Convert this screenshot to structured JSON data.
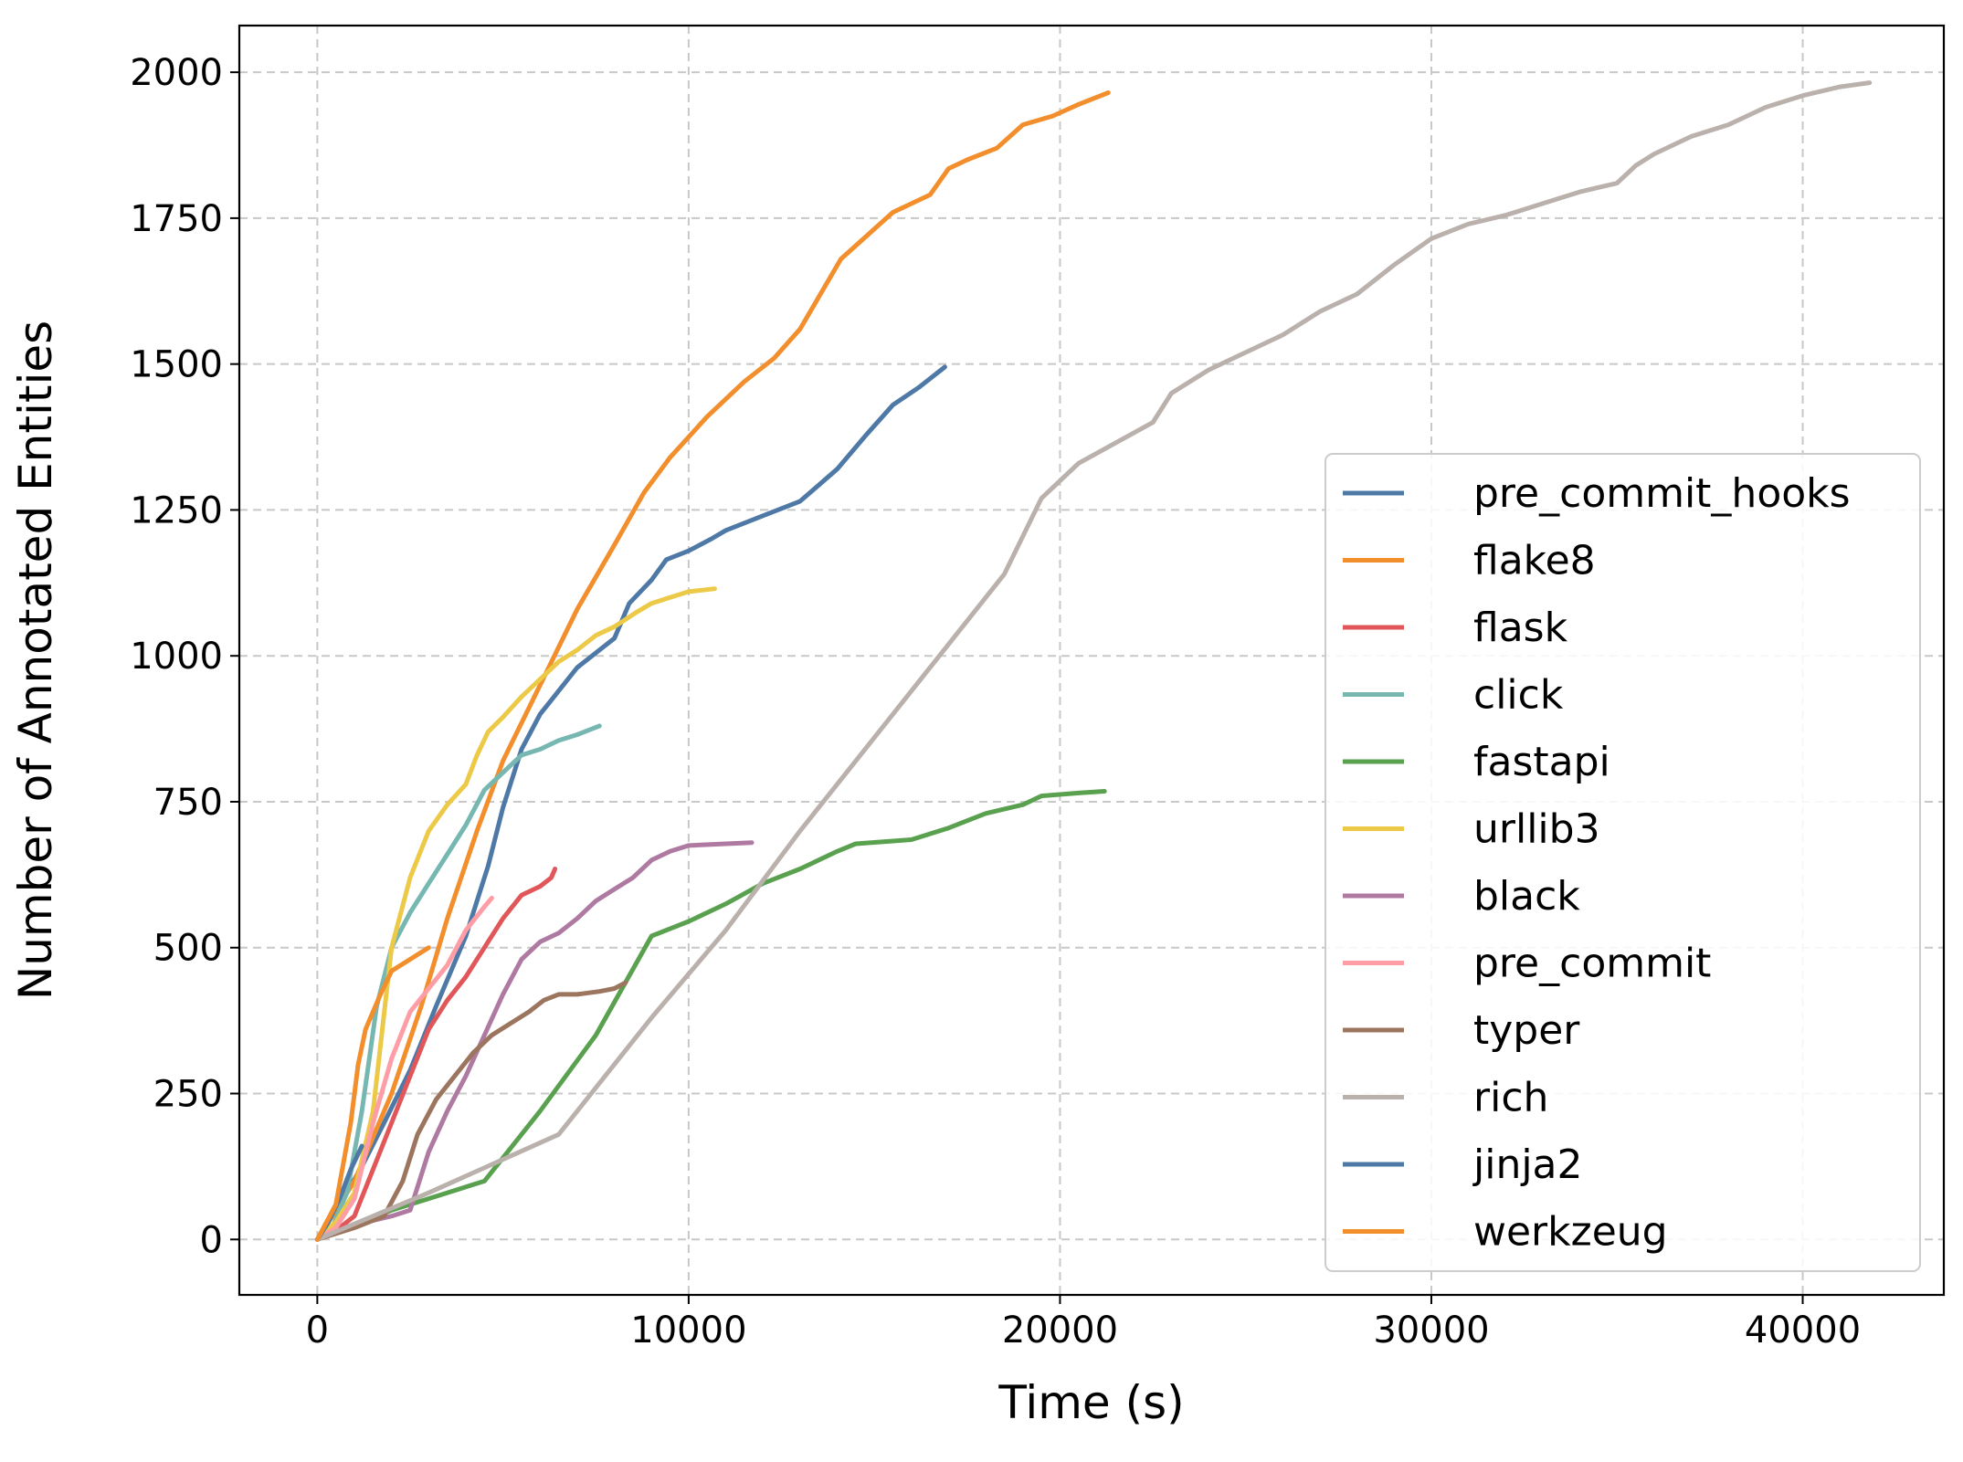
{
  "chart_data": {
    "type": "line",
    "title": "",
    "xlabel": "Time (s)",
    "ylabel": "Number of Annotated Entities",
    "xlim": [
      -2100,
      43800
    ],
    "ylim": [
      -95,
      2080
    ],
    "xticks": [
      0,
      10000,
      20000,
      30000,
      40000
    ],
    "xtick_labels": [
      "0",
      "10000",
      "20000",
      "30000",
      "40000"
    ],
    "yticks": [
      0,
      250,
      500,
      750,
      1000,
      1250,
      1500,
      1750,
      2000
    ],
    "ytick_labels": [
      "0",
      "250",
      "500",
      "750",
      "1000",
      "1250",
      "1500",
      "1750",
      "2000"
    ],
    "grid": true,
    "legend_position": "lower right",
    "series": [
      {
        "name": "pre_commit_hooks",
        "color": "#4e79a7",
        "points": [
          [
            0,
            0
          ],
          [
            600,
            60
          ],
          [
            1200,
            125
          ],
          [
            1800,
            200
          ],
          [
            2500,
            290
          ],
          [
            3200,
            400
          ],
          [
            4000,
            520
          ],
          [
            4600,
            640
          ],
          [
            5000,
            740
          ],
          [
            5500,
            840
          ],
          [
            6000,
            900
          ],
          [
            6500,
            940
          ],
          [
            7000,
            980
          ],
          [
            7600,
            1010
          ],
          [
            8000,
            1030
          ],
          [
            8400,
            1090
          ],
          [
            9000,
            1130
          ],
          [
            9400,
            1165
          ],
          [
            10000,
            1180
          ],
          [
            10600,
            1200
          ],
          [
            11000,
            1215
          ],
          [
            12000,
            1240
          ],
          [
            13000,
            1265
          ],
          [
            14000,
            1320
          ],
          [
            14800,
            1380
          ],
          [
            15500,
            1430
          ],
          [
            16200,
            1460
          ],
          [
            16900,
            1495
          ]
        ]
      },
      {
        "name": "flake8",
        "color": "#f28e2b",
        "points": [
          [
            0,
            0
          ],
          [
            1000,
            100
          ],
          [
            2000,
            250
          ],
          [
            2800,
            400
          ],
          [
            3500,
            550
          ],
          [
            4300,
            700
          ],
          [
            5000,
            820
          ],
          [
            6000,
            950
          ],
          [
            7000,
            1080
          ],
          [
            8000,
            1190
          ],
          [
            8800,
            1280
          ],
          [
            9500,
            1340
          ],
          [
            10500,
            1410
          ],
          [
            11500,
            1470
          ],
          [
            12300,
            1510
          ],
          [
            13000,
            1560
          ],
          [
            14100,
            1680
          ],
          [
            14800,
            1720
          ],
          [
            15500,
            1760
          ],
          [
            16500,
            1790
          ],
          [
            17000,
            1835
          ],
          [
            17500,
            1850
          ],
          [
            18300,
            1870
          ],
          [
            19000,
            1910
          ],
          [
            19800,
            1925
          ],
          [
            20500,
            1945
          ],
          [
            21300,
            1965
          ]
        ]
      },
      {
        "name": "flask",
        "color": "#e15759",
        "points": [
          [
            0,
            0
          ],
          [
            500,
            15
          ],
          [
            1000,
            40
          ],
          [
            1500,
            120
          ],
          [
            2000,
            200
          ],
          [
            2500,
            280
          ],
          [
            3000,
            360
          ],
          [
            3500,
            410
          ],
          [
            4000,
            450
          ],
          [
            4500,
            500
          ],
          [
            5000,
            550
          ],
          [
            5500,
            590
          ],
          [
            6000,
            605
          ],
          [
            6300,
            620
          ],
          [
            6400,
            635
          ]
        ]
      },
      {
        "name": "click",
        "color": "#76b7b2",
        "points": [
          [
            0,
            0
          ],
          [
            400,
            20
          ],
          [
            800,
            80
          ],
          [
            1200,
            220
          ],
          [
            1600,
            400
          ],
          [
            2000,
            500
          ],
          [
            2500,
            560
          ],
          [
            3000,
            610
          ],
          [
            3500,
            660
          ],
          [
            4000,
            710
          ],
          [
            4500,
            770
          ],
          [
            5000,
            800
          ],
          [
            5500,
            830
          ],
          [
            6000,
            840
          ],
          [
            6500,
            855
          ],
          [
            7000,
            865
          ],
          [
            7600,
            880
          ]
        ]
      },
      {
        "name": "fastapi",
        "color": "#59a14f",
        "points": [
          [
            0,
            0
          ],
          [
            2000,
            50
          ],
          [
            3000,
            70
          ],
          [
            4500,
            100
          ],
          [
            6000,
            220
          ],
          [
            7500,
            350
          ],
          [
            9000,
            520
          ],
          [
            10000,
            545
          ],
          [
            11000,
            575
          ],
          [
            12000,
            610
          ],
          [
            13000,
            635
          ],
          [
            14000,
            665
          ],
          [
            14500,
            678
          ],
          [
            16000,
            685
          ],
          [
            17000,
            705
          ],
          [
            18000,
            730
          ],
          [
            19000,
            745
          ],
          [
            19500,
            760
          ],
          [
            20500,
            765
          ],
          [
            21200,
            768
          ]
        ]
      },
      {
        "name": "urllib3",
        "color": "#edc948",
        "points": [
          [
            0,
            0
          ],
          [
            500,
            30
          ],
          [
            1000,
            80
          ],
          [
            1500,
            220
          ],
          [
            2000,
            500
          ],
          [
            2500,
            620
          ],
          [
            3000,
            700
          ],
          [
            3500,
            745
          ],
          [
            4000,
            780
          ],
          [
            4300,
            830
          ],
          [
            4600,
            870
          ],
          [
            5000,
            895
          ],
          [
            5500,
            930
          ],
          [
            6000,
            960
          ],
          [
            6500,
            990
          ],
          [
            7000,
            1010
          ],
          [
            7500,
            1035
          ],
          [
            8000,
            1050
          ],
          [
            8600,
            1075
          ],
          [
            9000,
            1090
          ],
          [
            9500,
            1100
          ],
          [
            10000,
            1110
          ],
          [
            10700,
            1115
          ]
        ]
      },
      {
        "name": "black",
        "color": "#af7aa1",
        "points": [
          [
            0,
            0
          ],
          [
            1000,
            25
          ],
          [
            2000,
            40
          ],
          [
            2500,
            50
          ],
          [
            3000,
            150
          ],
          [
            3500,
            220
          ],
          [
            4000,
            280
          ],
          [
            4500,
            350
          ],
          [
            5000,
            420
          ],
          [
            5500,
            480
          ],
          [
            6000,
            510
          ],
          [
            6500,
            525
          ],
          [
            7000,
            550
          ],
          [
            7500,
            580
          ],
          [
            8000,
            600
          ],
          [
            8500,
            620
          ],
          [
            9000,
            650
          ],
          [
            9500,
            665
          ],
          [
            10000,
            675
          ],
          [
            11000,
            678
          ],
          [
            11700,
            680
          ]
        ]
      },
      {
        "name": "pre_commit",
        "color": "#ff9da7",
        "points": [
          [
            0,
            0
          ],
          [
            500,
            20
          ],
          [
            1000,
            70
          ],
          [
            1500,
            200
          ],
          [
            2000,
            310
          ],
          [
            2500,
            390
          ],
          [
            3000,
            430
          ],
          [
            3500,
            470
          ],
          [
            4000,
            530
          ],
          [
            4500,
            570
          ],
          [
            4700,
            585
          ]
        ]
      },
      {
        "name": "typer",
        "color": "#9c755f",
        "points": [
          [
            0,
            0
          ],
          [
            1000,
            20
          ],
          [
            1800,
            40
          ],
          [
            2300,
            100
          ],
          [
            2700,
            180
          ],
          [
            3200,
            240
          ],
          [
            3700,
            280
          ],
          [
            4200,
            320
          ],
          [
            4700,
            350
          ],
          [
            5200,
            370
          ],
          [
            5700,
            390
          ],
          [
            6100,
            410
          ],
          [
            6500,
            420
          ],
          [
            7000,
            420
          ],
          [
            7600,
            425
          ],
          [
            8000,
            430
          ],
          [
            8300,
            440
          ]
        ]
      },
      {
        "name": "rich",
        "color": "#bab0ac",
        "points": [
          [
            0,
            0
          ],
          [
            3000,
            80
          ],
          [
            6500,
            180
          ],
          [
            9000,
            380
          ],
          [
            11000,
            530
          ],
          [
            13000,
            700
          ],
          [
            15000,
            860
          ],
          [
            17000,
            1020
          ],
          [
            18500,
            1140
          ],
          [
            19500,
            1270
          ],
          [
            20500,
            1330
          ],
          [
            21500,
            1365
          ],
          [
            22500,
            1400
          ],
          [
            23000,
            1450
          ],
          [
            24000,
            1490
          ],
          [
            25000,
            1520
          ],
          [
            26000,
            1550
          ],
          [
            27000,
            1590
          ],
          [
            28000,
            1620
          ],
          [
            29000,
            1670
          ],
          [
            30000,
            1715
          ],
          [
            31000,
            1740
          ],
          [
            32000,
            1755
          ],
          [
            33000,
            1775
          ],
          [
            34000,
            1795
          ],
          [
            35000,
            1810
          ],
          [
            35500,
            1840
          ],
          [
            36000,
            1860
          ],
          [
            37000,
            1890
          ],
          [
            38000,
            1910
          ],
          [
            39000,
            1940
          ],
          [
            40000,
            1960
          ],
          [
            41000,
            1975
          ],
          [
            41800,
            1982
          ]
        ]
      },
      {
        "name": "jinja2",
        "color": "#4e79a7",
        "points": [
          [
            0,
            0
          ],
          [
            300,
            30
          ],
          [
            600,
            70
          ],
          [
            900,
            120
          ],
          [
            1200,
            160
          ]
        ]
      },
      {
        "name": "werkzeug",
        "color": "#f28e2b",
        "points": [
          [
            0,
            0
          ],
          [
            500,
            60
          ],
          [
            900,
            200
          ],
          [
            1100,
            300
          ],
          [
            1300,
            360
          ],
          [
            1700,
            420
          ],
          [
            2000,
            460
          ],
          [
            2500,
            480
          ],
          [
            3000,
            500
          ]
        ]
      }
    ]
  }
}
